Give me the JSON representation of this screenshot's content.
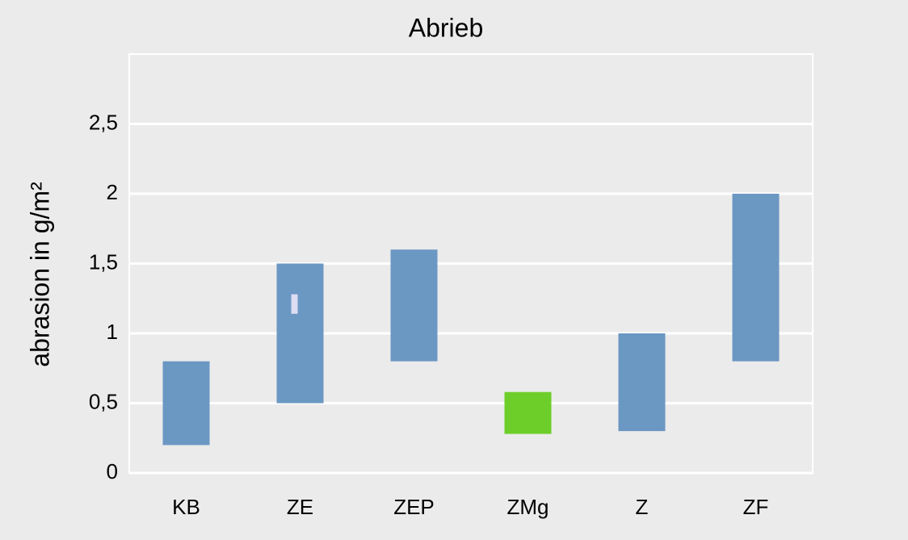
{
  "chart_data": {
    "type": "range-bar",
    "title": "Abrieb",
    "y_label": "abrasion in g/m²",
    "categories": [
      "KB",
      "ZE",
      "ZEP",
      "ZMg",
      "Z",
      "ZF"
    ],
    "values": [
      [
        0.2,
        0.8
      ],
      [
        0.5,
        1.5
      ],
      [
        0.8,
        1.6
      ],
      [
        0.28,
        0.58
      ],
      [
        0.3,
        1.0
      ],
      [
        0.8,
        2.0
      ]
    ],
    "colors": [
      "#6b97c3",
      "#6b97c3",
      "#6b97c3",
      "#6dce2a",
      "#6b97c3",
      "#6b97c3"
    ],
    "markers": [
      null,
      [
        1.14,
        1.28
      ],
      null,
      null,
      null,
      null
    ],
    "marker_color": "#dcdcf2",
    "ylim": [
      0,
      3
    ],
    "yticks": [
      0,
      {
        "value": 0.5,
        "label": "0,5"
      },
      1,
      {
        "value": 1.5,
        "label": "1,5"
      },
      2,
      {
        "value": 2.5,
        "label": "2,5"
      }
    ],
    "grid": true
  }
}
